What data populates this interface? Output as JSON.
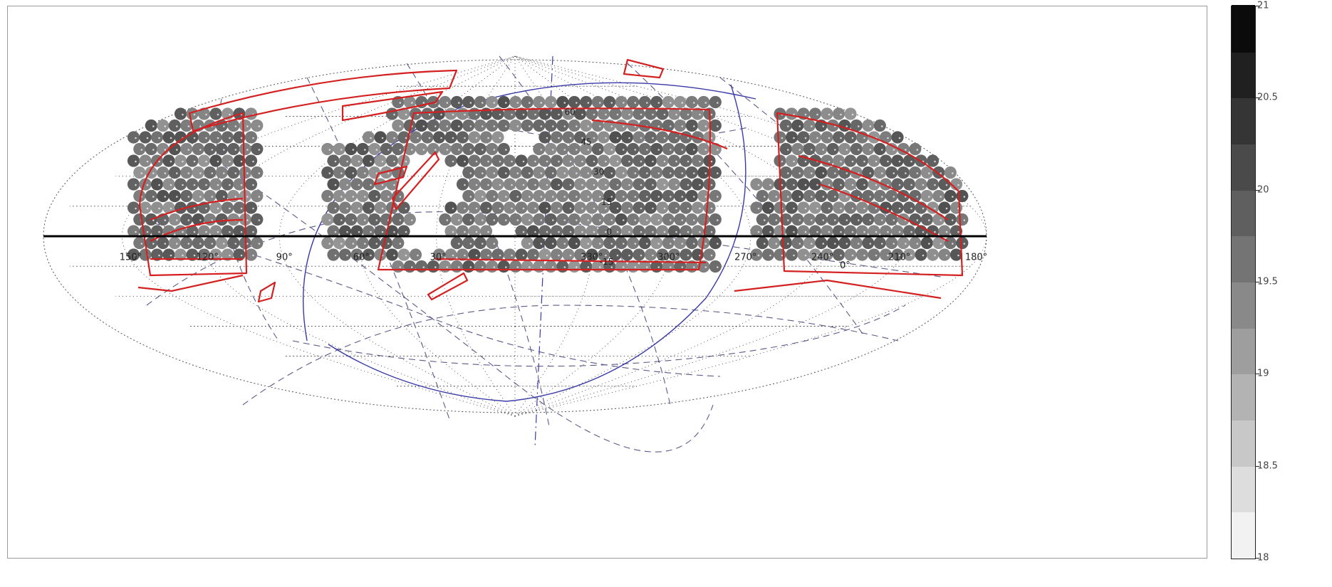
{
  "chart_data": {
    "type": "heatmap",
    "projection": "mollweide all-sky",
    "colorbar": {
      "min": 18,
      "max": 21,
      "step": 0.25,
      "tick_labels": [
        "18",
        "18.5",
        "19",
        "19.5",
        "20",
        "20.5",
        "21"
      ],
      "colormap": "gray (light = 18, dark = 21)"
    },
    "longitude_labels": [
      "330",
      "300",
      "270",
      "240",
      "210",
      "180",
      "150",
      "120",
      "90",
      "60",
      "30",
      "0"
    ],
    "latitude_labels": [
      "60",
      "45",
      "30",
      "15",
      "0",
      "-15"
    ],
    "grid": true,
    "colors": {
      "survey_outline": "#d42020",
      "coordinate_grid": "#3a3aa8",
      "equator_line": "#000000",
      "frame": "#9a9a9a"
    }
  }
}
